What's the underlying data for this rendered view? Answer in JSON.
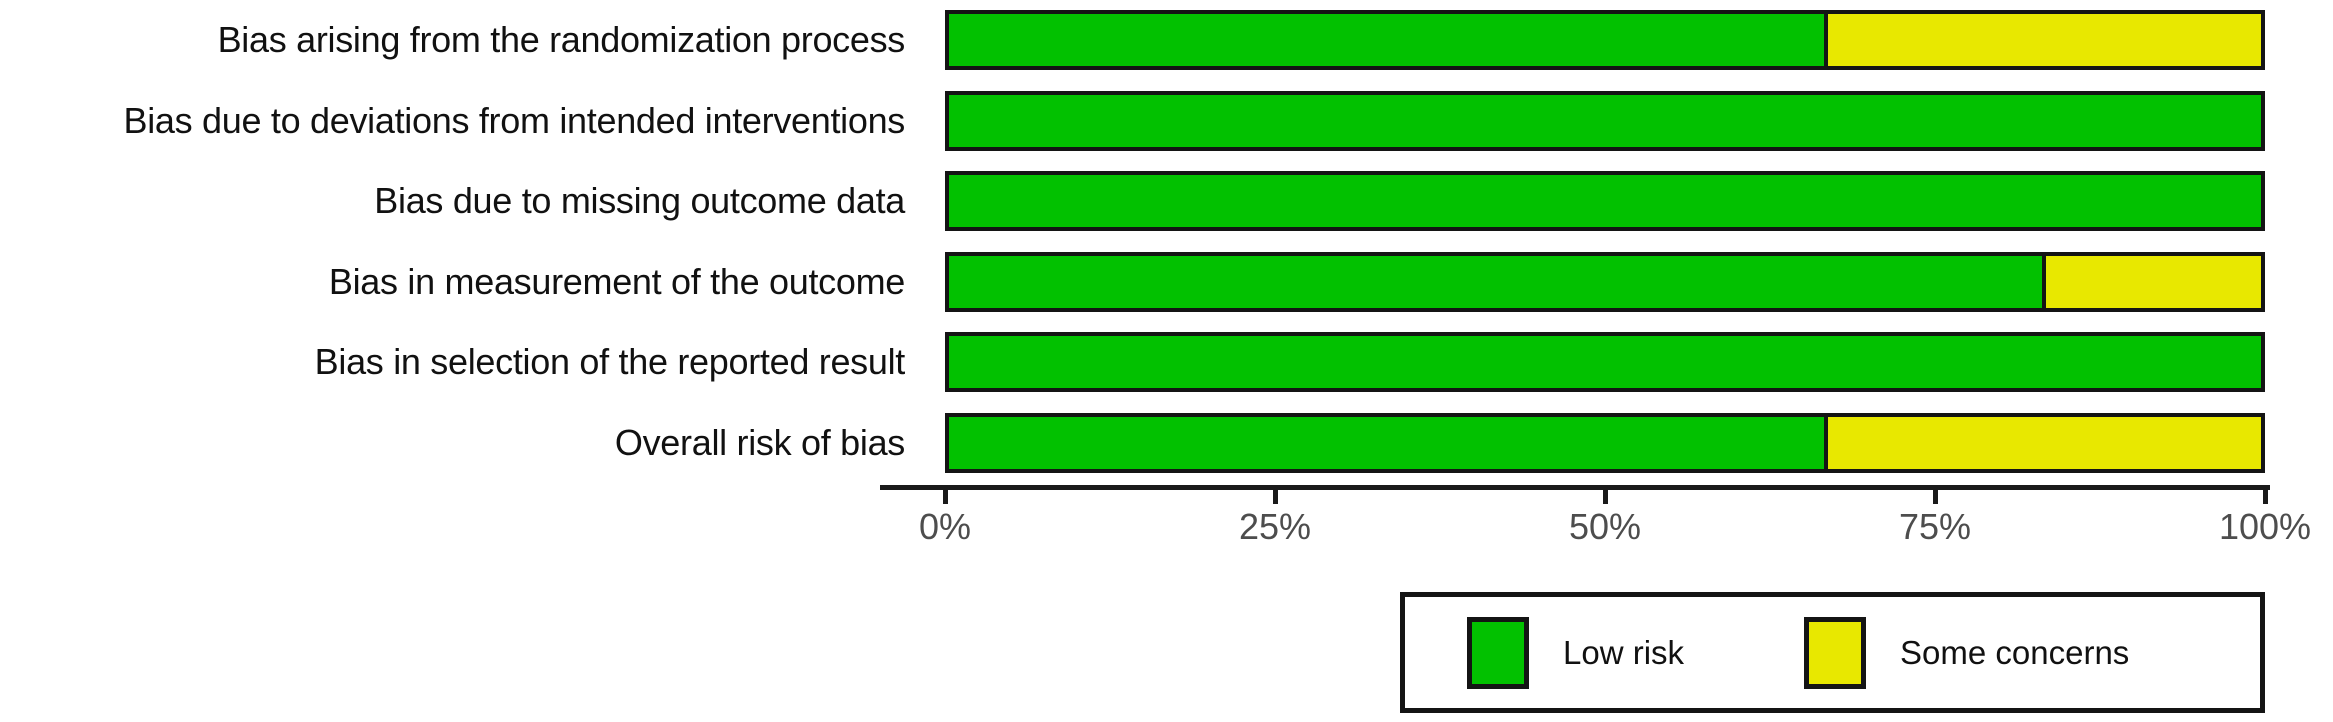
{
  "figure": {
    "background": "#ffffff"
  },
  "chart_data": {
    "type": "bar",
    "orientation": "horizontal",
    "stacked": true,
    "units": "percent",
    "title": "",
    "xlabel": "",
    "ylabel": "",
    "grid": false,
    "categories": [
      "Bias arising from the randomization process",
      "Bias due to deviations from intended interventions",
      "Bias due to missing outcome data",
      "Bias in measurement of the outcome",
      "Bias in selection of the reported result",
      "Overall risk of bias"
    ],
    "series": [
      {
        "name": "Low risk",
        "color": "#02C100",
        "values": [
          66.7,
          100,
          100,
          83.3,
          100,
          66.7
        ]
      },
      {
        "name": "Some concerns",
        "color": "#E8E800",
        "values": [
          33.3,
          0,
          0,
          16.7,
          0,
          33.3
        ]
      }
    ],
    "x_axis": {
      "range": [
        0,
        100
      ],
      "tick_labels": [
        "0%",
        "25%",
        "50%",
        "75%",
        "100%"
      ],
      "tick_values": [
        0,
        25,
        50,
        75,
        100
      ]
    },
    "legend": {
      "position": "bottom-right",
      "entries": [
        "Low risk",
        "Some concerns"
      ]
    }
  },
  "style": {
    "bar_border_color": "#141414",
    "axis_color": "#1a1a1a",
    "tick_label_color": "#4d4d4d",
    "label_color": "#111111"
  },
  "layout_geometry": {
    "row_top_start": 10,
    "row_pitch": 80.6,
    "bar_area_left": 945,
    "bar_area_width": 1320
  }
}
